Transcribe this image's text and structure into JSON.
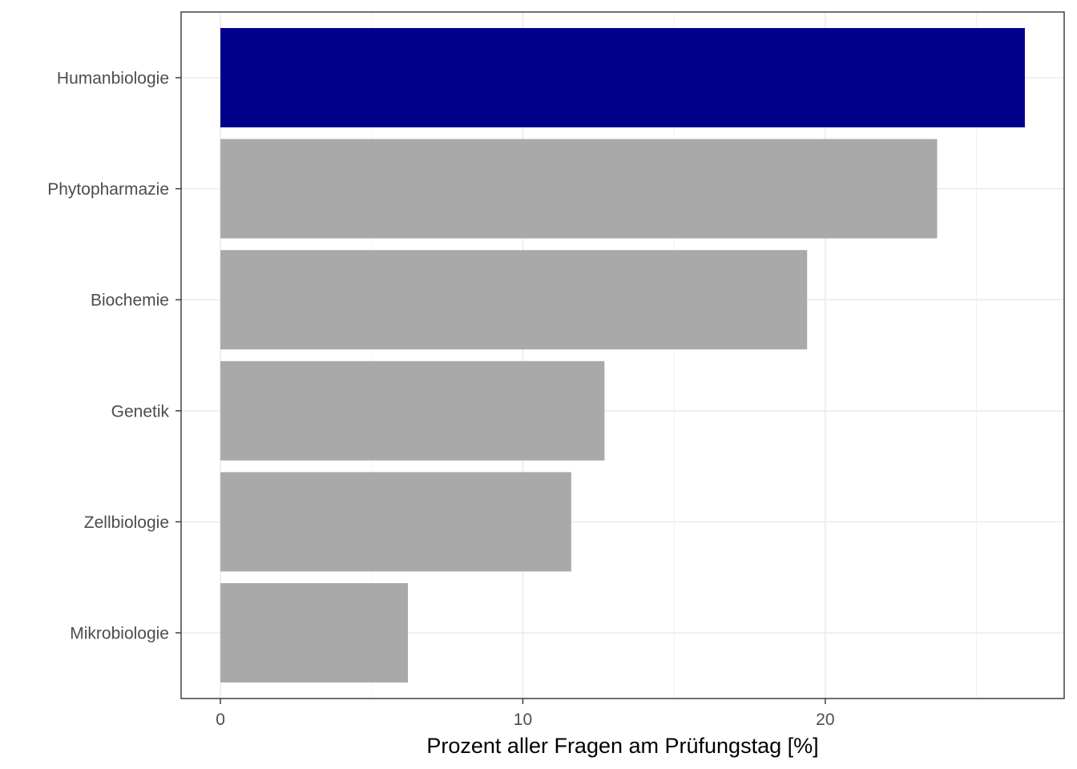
{
  "chart_data": {
    "type": "bar",
    "orientation": "horizontal",
    "categories": [
      "Humanbiologie",
      "Phytopharmazie",
      "Biochemie",
      "Genetik",
      "Zellbiologie",
      "Mikrobiologie"
    ],
    "values": [
      26.6,
      23.7,
      19.4,
      12.7,
      11.6,
      6.2
    ],
    "highlight": "Humanbiologie",
    "title": "",
    "xlabel": "Prozent aller Fragen am Prüfungstag [%]",
    "ylabel": "",
    "xlim": [
      -1.3,
      27.9
    ],
    "xticks": [
      0,
      10,
      20
    ],
    "grid": true,
    "colors": {
      "highlight": "#00008B",
      "default": "#A9A9A9",
      "grid_major": "#EBEBEB",
      "grid_minor": "#F2F2F2",
      "panel_border": "#333333"
    }
  }
}
